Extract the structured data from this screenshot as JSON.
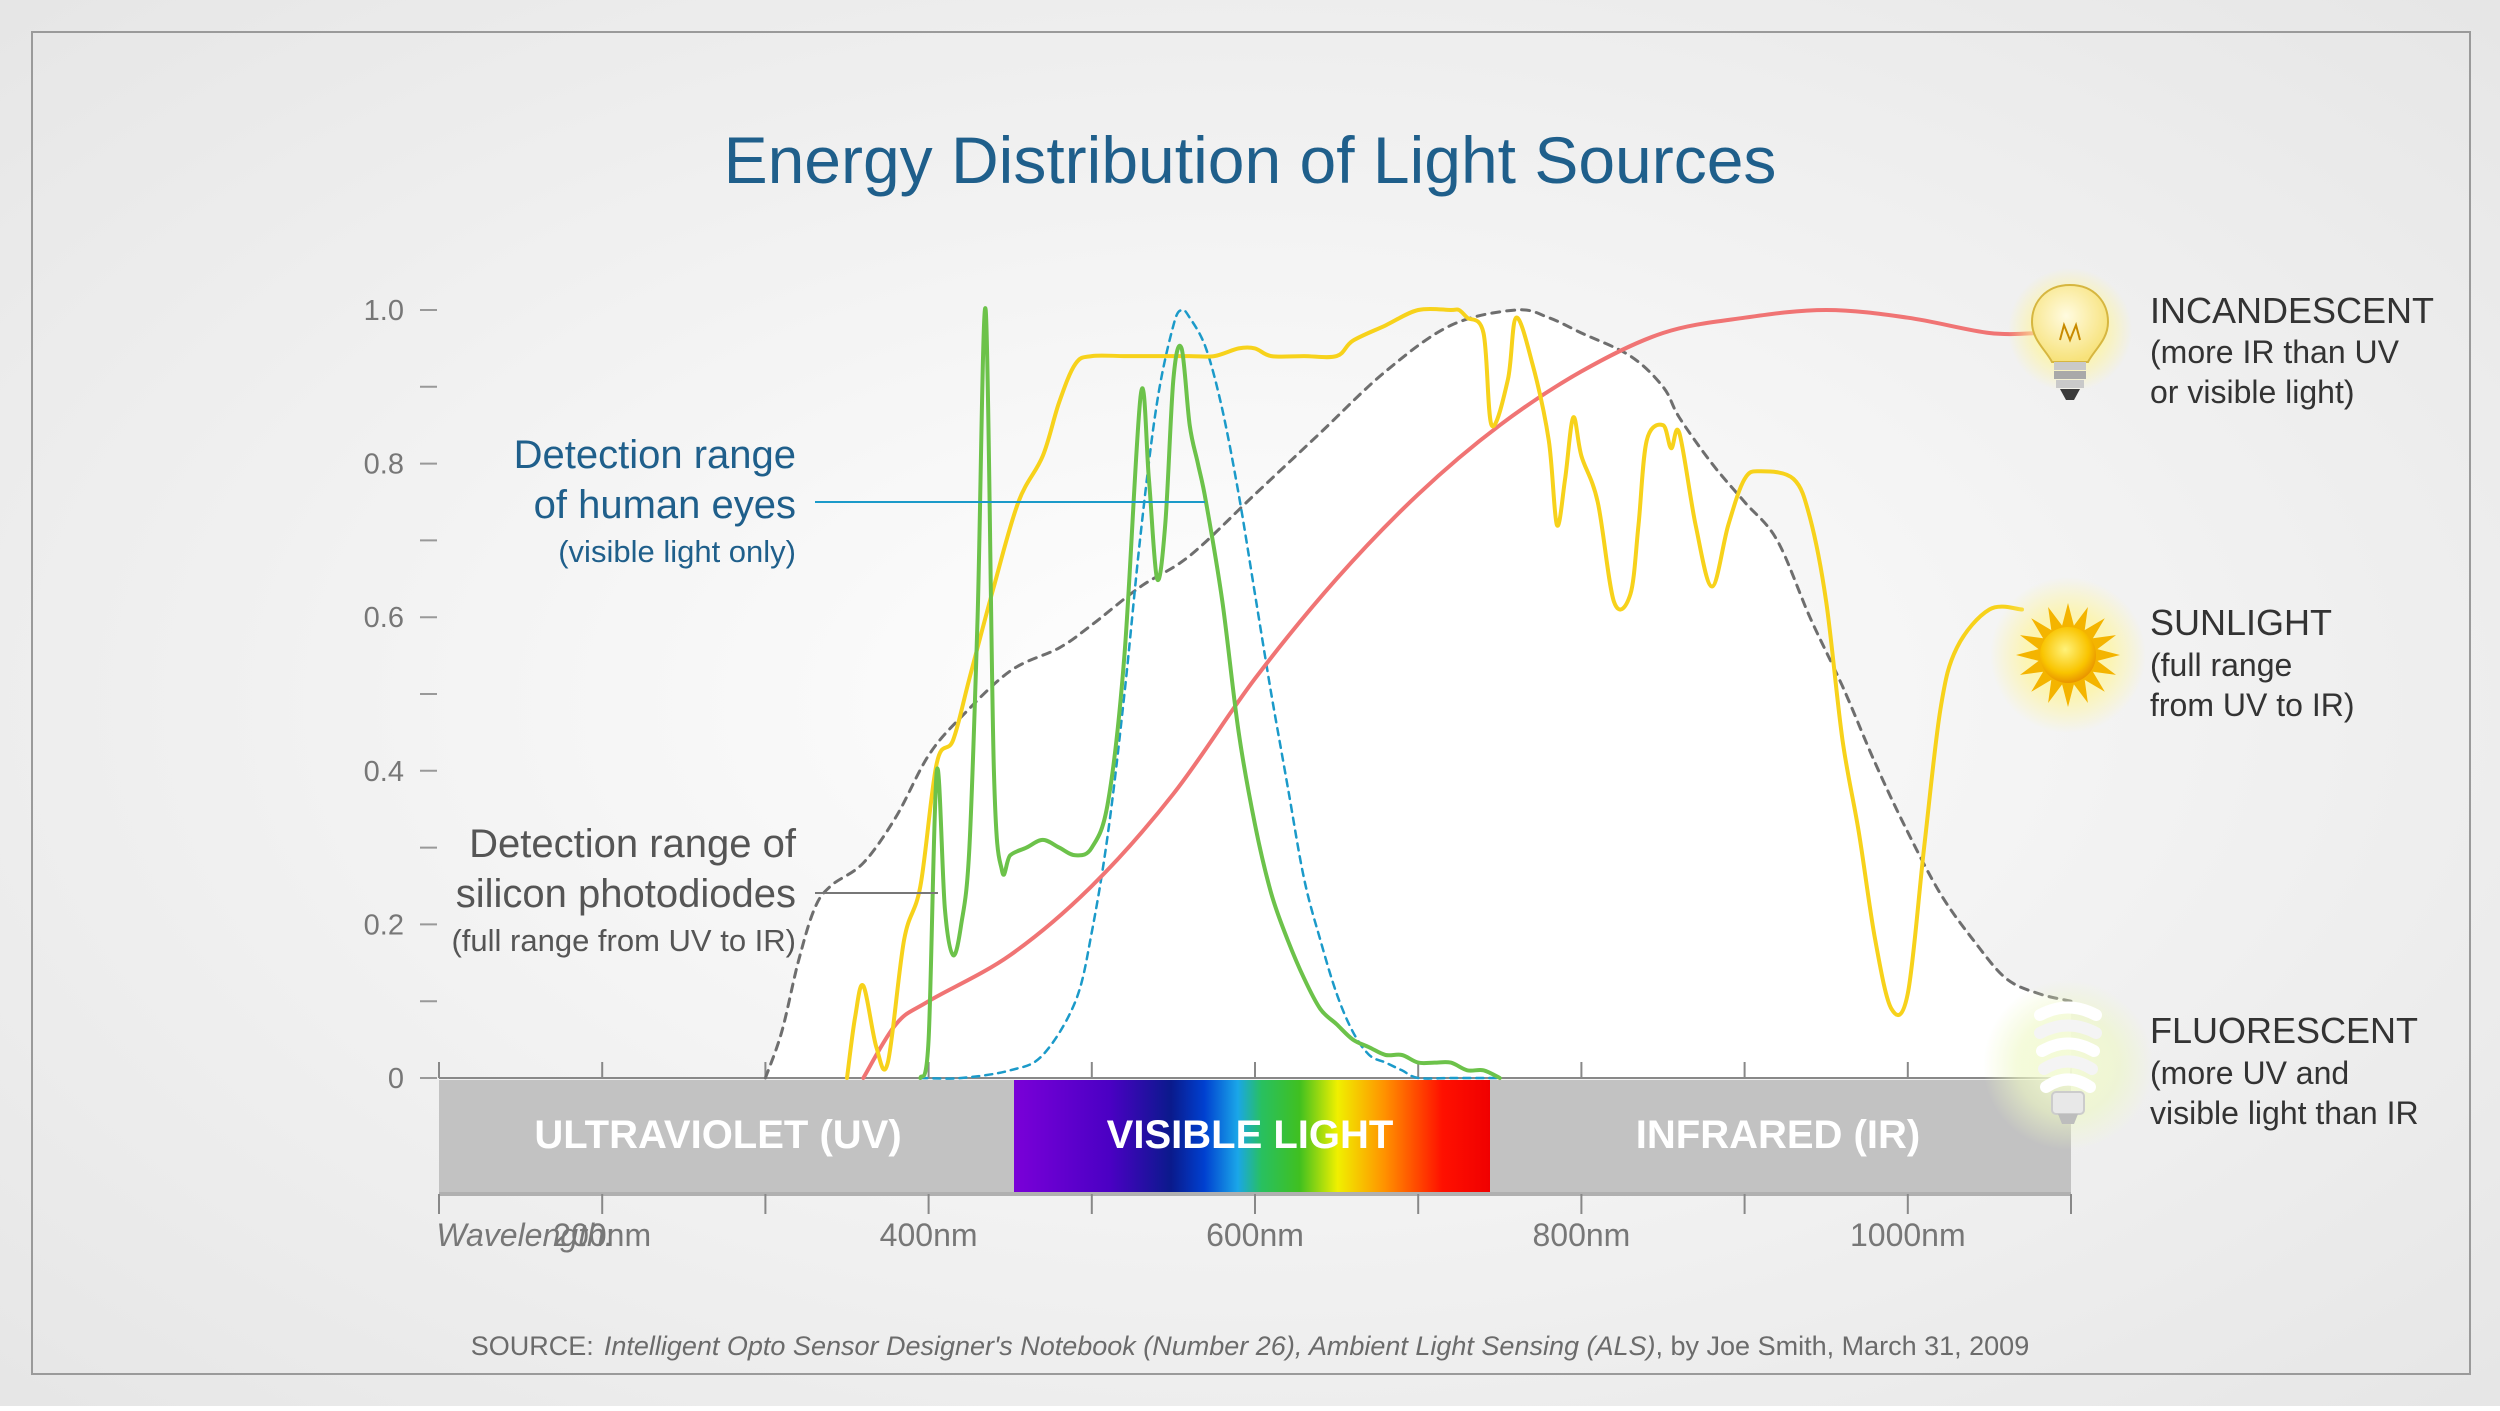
{
  "title": "Energy Distribution of Light Sources",
  "source": {
    "prefix": "SOURCE:",
    "work": "Intelligent Opto Sensor Designer's Notebook (Number 26), Ambient Light Sensing (ALS)",
    "suffix": ", by Joe Smith, March 31, 2009"
  },
  "colors": {
    "title": "#1f5f8b",
    "incandescent": "#f07474",
    "sunlight": "#f7d21b",
    "fluorescent": "#6cc24a",
    "human_eye": "#1b9ac9",
    "photodiode": "#6e6e6e"
  },
  "bands": {
    "uv": "ULTRAVIOLET (UV)",
    "visible": "VISIBLE LIGHT",
    "ir": "INFRARED (IR)"
  },
  "annotations": {
    "eyes": {
      "line1": "Detection range",
      "line2": "of human eyes",
      "line3": "(visible light only)"
    },
    "silicon": {
      "line1": "Detection range of",
      "line2": "silicon photodiodes",
      "line3": "(full range from UV to IR)"
    }
  },
  "legend": {
    "incandescent": {
      "name": "INCANDESCENT",
      "line1": "(more IR than UV",
      "line2": "or visible light)",
      "icon": "light-bulb-icon"
    },
    "sunlight": {
      "name": "SUNLIGHT",
      "line1": "(full range",
      "line2": "from UV to IR)",
      "icon": "sun-icon"
    },
    "fluorescent": {
      "name": "FLUORESCENT",
      "line1": "(more UV and",
      "line2": "visible light than IR",
      "icon": "cfl-bulb-icon"
    }
  },
  "chart_data": {
    "type": "line",
    "title": "Energy Distribution of Light Sources",
    "xlabel": "Wavelength:",
    "ylabel": "",
    "xlim": [
      100,
      1100
    ],
    "ylim": [
      0,
      1.0
    ],
    "x_ticks": [
      200,
      400,
      600,
      800,
      1000
    ],
    "x_tick_labels": [
      "200nm",
      "400nm",
      "600nm",
      "800nm",
      "1000nm"
    ],
    "y_ticks": [
      0,
      0.2,
      0.4,
      0.6,
      0.8,
      1.0
    ],
    "y_tick_labels": [
      "0",
      "0.2",
      "0.4",
      "0.6",
      "0.8",
      "1.0"
    ],
    "grid": false,
    "series": [
      {
        "name": "INCANDESCENT",
        "color": "#f07474",
        "x": [
          360,
          380,
          400,
          450,
          500,
          550,
          600,
          650,
          700,
          750,
          800,
          850,
          900,
          950,
          1000,
          1050,
          1080
        ],
        "y": [
          0.0,
          0.07,
          0.1,
          0.16,
          0.25,
          0.37,
          0.52,
          0.65,
          0.76,
          0.85,
          0.92,
          0.97,
          0.99,
          1.0,
          0.99,
          0.97,
          0.97
        ]
      },
      {
        "name": "SUNLIGHT",
        "color": "#f7d21b",
        "x": [
          350,
          355,
          360,
          368,
          375,
          385,
          395,
          405,
          415,
          425,
          440,
          455,
          470,
          480,
          490,
          500,
          520,
          540,
          560,
          575,
          590,
          600,
          610,
          630,
          650,
          660,
          680,
          700,
          720,
          725,
          730,
          740,
          745,
          755,
          760,
          770,
          780,
          785,
          790,
          795,
          800,
          810,
          820,
          830,
          835,
          840,
          850,
          855,
          860,
          870,
          880,
          890,
          900,
          910,
          930,
          940,
          950,
          960,
          970,
          980,
          990,
          1000,
          1010,
          1020,
          1030,
          1050,
          1070
        ],
        "y": [
          0.0,
          0.08,
          0.12,
          0.04,
          0.02,
          0.18,
          0.25,
          0.41,
          0.44,
          0.52,
          0.64,
          0.75,
          0.81,
          0.88,
          0.93,
          0.94,
          0.94,
          0.94,
          0.94,
          0.94,
          0.95,
          0.95,
          0.94,
          0.94,
          0.94,
          0.96,
          0.98,
          1.0,
          1.0,
          1.0,
          0.99,
          0.97,
          0.85,
          0.91,
          0.99,
          0.93,
          0.83,
          0.72,
          0.78,
          0.86,
          0.81,
          0.75,
          0.62,
          0.63,
          0.72,
          0.83,
          0.85,
          0.82,
          0.84,
          0.72,
          0.64,
          0.72,
          0.78,
          0.79,
          0.78,
          0.73,
          0.62,
          0.44,
          0.32,
          0.18,
          0.09,
          0.11,
          0.3,
          0.48,
          0.56,
          0.61,
          0.61
        ]
      },
      {
        "name": "FLUORESCENT",
        "color": "#6cc24a",
        "x": [
          395,
          400,
          405,
          410,
          415,
          420,
          425,
          430,
          435,
          440,
          445,
          450,
          460,
          470,
          480,
          490,
          500,
          510,
          520,
          530,
          535,
          540,
          545,
          550,
          555,
          560,
          565,
          570,
          580,
          590,
          600,
          610,
          620,
          630,
          640,
          650,
          660,
          670,
          680,
          690,
          700,
          710,
          720,
          730,
          740,
          750
        ],
        "y": [
          0.0,
          0.05,
          0.4,
          0.22,
          0.16,
          0.2,
          0.3,
          0.6,
          1.0,
          0.4,
          0.27,
          0.29,
          0.3,
          0.31,
          0.3,
          0.29,
          0.3,
          0.36,
          0.55,
          0.89,
          0.78,
          0.65,
          0.72,
          0.91,
          0.95,
          0.85,
          0.8,
          0.75,
          0.62,
          0.45,
          0.33,
          0.24,
          0.18,
          0.13,
          0.09,
          0.07,
          0.05,
          0.04,
          0.03,
          0.03,
          0.02,
          0.02,
          0.02,
          0.01,
          0.01,
          0.0
        ]
      },
      {
        "name": "Detection range of human eyes",
        "color": "#1b9ac9",
        "dashed": true,
        "x": [
          395,
          420,
          450,
          470,
          490,
          500,
          510,
          520,
          530,
          540,
          550,
          555,
          560,
          570,
          580,
          590,
          600,
          610,
          620,
          630,
          640,
          650,
          660,
          670,
          680,
          690,
          700,
          720,
          740,
          750
        ],
        "y": [
          0.0,
          0.0,
          0.01,
          0.03,
          0.1,
          0.19,
          0.32,
          0.5,
          0.71,
          0.88,
          0.98,
          1.0,
          0.99,
          0.95,
          0.87,
          0.76,
          0.63,
          0.5,
          0.38,
          0.26,
          0.18,
          0.11,
          0.06,
          0.03,
          0.02,
          0.01,
          0.0,
          0.0,
          0.0,
          0.0
        ]
      },
      {
        "name": "Detection range of silicon photodiodes",
        "color": "#6e6e6e",
        "dashed": true,
        "x": [
          300,
          310,
          320,
          330,
          340,
          360,
          380,
          400,
          420,
          450,
          480,
          500,
          530,
          560,
          600,
          640,
          680,
          720,
          760,
          780,
          800,
          830,
          850,
          860,
          880,
          900,
          920,
          940,
          960,
          980,
          1000,
          1020,
          1040,
          1060,
          1080,
          1100
        ],
        "y": [
          0.0,
          0.06,
          0.15,
          0.22,
          0.25,
          0.28,
          0.34,
          0.42,
          0.47,
          0.53,
          0.56,
          0.59,
          0.64,
          0.68,
          0.76,
          0.84,
          0.92,
          0.98,
          1.0,
          0.99,
          0.97,
          0.94,
          0.9,
          0.86,
          0.8,
          0.75,
          0.7,
          0.6,
          0.51,
          0.41,
          0.32,
          0.24,
          0.18,
          0.13,
          0.11,
          0.1
        ]
      }
    ]
  }
}
